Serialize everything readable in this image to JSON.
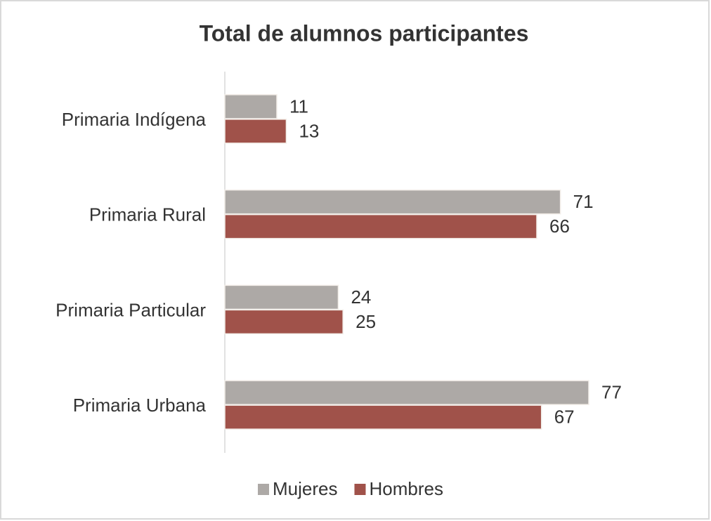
{
  "chart_data": {
    "type": "bar",
    "orientation": "horizontal",
    "title": "Total de alumnos participantes",
    "categories": [
      "Primaria Indígena",
      "Primaria Rural",
      "Primaria Particular",
      "Primaria Urbana"
    ],
    "series": [
      {
        "name": "Mujeres",
        "color": "#ada9a6",
        "values": [
          11,
          71,
          24,
          77
        ]
      },
      {
        "name": "Hombres",
        "color": "#a0524a",
        "values": [
          13,
          66,
          25,
          67
        ]
      }
    ],
    "legend": "bottom"
  }
}
